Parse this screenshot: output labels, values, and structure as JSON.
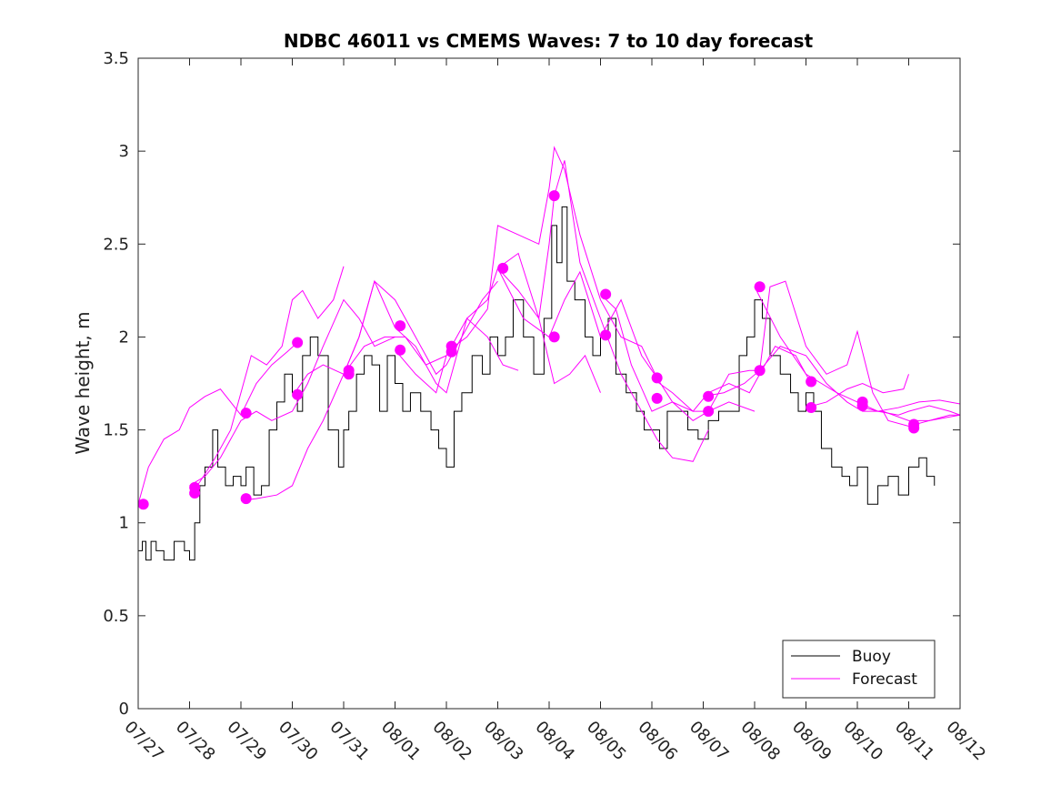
{
  "chart_data": {
    "type": "line",
    "title": "NDBC 46011 vs CMEMS Waves: 7 to 10 day forecast",
    "ylabel": "Wave height, m",
    "xlabel": "",
    "x_tick_labels": [
      "07/27",
      "07/28",
      "07/29",
      "07/30",
      "07/31",
      "08/01",
      "08/02",
      "08/03",
      "08/04",
      "08/05",
      "08/06",
      "08/07",
      "08/08",
      "08/09",
      "08/10",
      "08/11",
      "08/12"
    ],
    "y_tick_labels": [
      "0",
      "0.5",
      "1",
      "1.5",
      "2",
      "2.5",
      "3",
      "3.5"
    ],
    "y_ticks": [
      0,
      0.5,
      1,
      1.5,
      2,
      2.5,
      3,
      3.5
    ],
    "xlim": [
      0,
      16
    ],
    "ylim": [
      0,
      3.5
    ],
    "grid": false,
    "legend": {
      "position": "bottom-right",
      "entries": [
        "Buoy",
        "Forecast"
      ]
    },
    "colors": {
      "buoy": "#000000",
      "forecast": "#ff00ff"
    },
    "x_units": "days since 07/27",
    "series": [
      {
        "name": "Buoy",
        "x": [
          0,
          0.08,
          0.15,
          0.25,
          0.35,
          0.5,
          0.7,
          0.9,
          1.0,
          1.1,
          1.2,
          1.3,
          1.45,
          1.55,
          1.7,
          1.85,
          2.0,
          2.1,
          2.25,
          2.4,
          2.55,
          2.7,
          2.85,
          3.0,
          3.1,
          3.2,
          3.35,
          3.5,
          3.7,
          3.9,
          4.0,
          4.1,
          4.25,
          4.4,
          4.55,
          4.7,
          4.85,
          5.0,
          5.15,
          5.3,
          5.5,
          5.7,
          5.85,
          6.0,
          6.15,
          6.3,
          6.5,
          6.7,
          6.85,
          7.0,
          7.15,
          7.3,
          7.5,
          7.7,
          7.9,
          8.05,
          8.15,
          8.25,
          8.35,
          8.5,
          8.7,
          8.85,
          9.0,
          9.15,
          9.3,
          9.5,
          9.7,
          9.85,
          10.0,
          10.15,
          10.3,
          10.5,
          10.7,
          10.9,
          11.1,
          11.3,
          11.5,
          11.7,
          11.85,
          12.0,
          12.15,
          12.3,
          12.5,
          12.7,
          12.85,
          13.0,
          13.15,
          13.3,
          13.5,
          13.7,
          13.85,
          14.0,
          14.2,
          14.4,
          14.6,
          14.8,
          15.0,
          15.2,
          15.35,
          15.5
        ],
        "values": [
          0.85,
          0.9,
          0.8,
          0.9,
          0.85,
          0.8,
          0.9,
          0.85,
          0.8,
          1.0,
          1.2,
          1.3,
          1.5,
          1.3,
          1.2,
          1.25,
          1.2,
          1.3,
          1.15,
          1.2,
          1.5,
          1.65,
          1.8,
          1.7,
          1.6,
          1.9,
          2.0,
          1.9,
          1.5,
          1.3,
          1.5,
          1.6,
          1.8,
          1.9,
          1.85,
          1.6,
          1.9,
          1.75,
          1.6,
          1.7,
          1.6,
          1.5,
          1.4,
          1.3,
          1.6,
          1.7,
          1.9,
          1.8,
          2.0,
          1.9,
          2.0,
          2.2,
          2.0,
          1.8,
          2.1,
          2.6,
          2.4,
          2.7,
          2.3,
          2.2,
          2.0,
          1.9,
          2.0,
          2.1,
          1.8,
          1.7,
          1.6,
          1.5,
          1.5,
          1.4,
          1.6,
          1.6,
          1.5,
          1.45,
          1.55,
          1.6,
          1.6,
          1.9,
          2.0,
          2.2,
          2.1,
          1.9,
          1.8,
          1.7,
          1.6,
          1.7,
          1.6,
          1.4,
          1.3,
          1.25,
          1.2,
          1.3,
          1.1,
          1.2,
          1.25,
          1.15,
          1.3,
          1.35,
          1.25,
          1.2
        ]
      },
      {
        "name": "Forecast",
        "runs": [
          {
            "x": [
              0,
              0.2,
              0.5,
              0.8,
              1.0,
              1.3,
              1.6,
              2.0,
              2.3,
              2.6,
              2.9,
              3.1
            ],
            "values": [
              1.1,
              1.3,
              1.45,
              1.5,
              1.62,
              1.68,
              1.72,
              1.58,
              1.75,
              1.85,
              1.92,
              1.97
            ]
          },
          {
            "x": [
              1.0,
              1.2,
              1.5,
              1.8,
              2.0,
              2.2,
              2.5,
              2.8,
              3.0,
              3.2,
              3.5,
              3.8,
              4.0
            ],
            "values": [
              1.15,
              1.22,
              1.35,
              1.5,
              1.7,
              1.9,
              1.85,
              1.95,
              2.2,
              2.25,
              2.1,
              2.2,
              2.38
            ]
          },
          {
            "x": [
              1.0,
              1.3,
              1.6,
              2.0,
              2.3,
              2.6,
              3.0,
              3.3,
              3.6,
              4.0,
              4.3,
              4.6,
              5.0
            ],
            "values": [
              1.2,
              1.25,
              1.35,
              1.55,
              1.6,
              1.55,
              1.6,
              1.75,
              1.95,
              2.2,
              2.1,
              1.95,
              2.0
            ]
          },
          {
            "x": [
              2.0,
              2.3,
              2.7,
              3.0,
              3.3,
              3.6,
              4.0,
              4.4,
              4.8,
              5.2,
              5.6,
              6.0
            ],
            "values": [
              1.12,
              1.13,
              1.15,
              1.2,
              1.4,
              1.55,
              1.8,
              1.95,
              2.0,
              2.0,
              1.85,
              1.9
            ]
          },
          {
            "x": [
              3.0,
              3.3,
              3.6,
              4.0,
              4.3,
              4.6,
              5.0,
              5.4,
              5.8,
              6.0,
              6.3,
              6.7,
              7.0
            ],
            "values": [
              1.68,
              1.8,
              1.85,
              1.8,
              2.0,
              2.3,
              2.2,
              2.0,
              1.8,
              1.85,
              2.0,
              2.2,
              2.3
            ]
          },
          {
            "x": [
              4.0,
              4.3,
              4.6,
              5.0,
              5.4,
              5.8,
              6.0,
              6.4,
              6.8,
              7.1,
              7.4
            ],
            "values": [
              1.8,
              2.0,
              2.3,
              2.05,
              1.95,
              1.75,
              1.7,
              2.1,
              2.0,
              1.85,
              1.82
            ]
          },
          {
            "x": [
              5.0,
              5.4,
              5.8,
              6.0,
              6.4,
              6.8,
              7.0,
              7.4,
              7.8,
              8.1,
              8.4,
              8.7,
              9.0
            ],
            "values": [
              1.93,
              1.8,
              1.7,
              1.9,
              2.1,
              2.2,
              2.37,
              2.45,
              2.1,
              1.75,
              1.8,
              1.9,
              1.7
            ]
          },
          {
            "x": [
              6.0,
              6.4,
              6.8,
              7.0,
              7.4,
              7.8,
              8.0,
              8.1,
              8.3,
              8.6,
              9.0,
              9.4,
              9.8,
              10.1
            ],
            "values": [
              1.92,
              2.0,
              2.15,
              2.6,
              2.55,
              2.5,
              2.8,
              3.02,
              2.9,
              2.55,
              2.2,
              2.0,
              1.95,
              1.78
            ]
          },
          {
            "x": [
              7.0,
              7.4,
              7.8,
              8.0,
              8.1,
              8.3,
              8.6,
              9.0,
              9.4,
              9.8,
              10.1,
              10.4,
              10.8,
              11.1
            ],
            "values": [
              2.37,
              2.25,
              2.1,
              2.5,
              2.76,
              2.95,
              2.4,
              2.1,
              1.8,
              1.6,
              1.45,
              1.35,
              1.33,
              1.5
            ]
          },
          {
            "x": [
              7.0,
              7.5,
              8.0,
              8.3,
              8.6,
              9.0,
              9.4,
              9.8,
              10.1,
              10.4,
              10.8,
              11.1,
              11.5,
              12.0
            ],
            "values": [
              2.37,
              2.1,
              2.0,
              2.2,
              2.35,
              2.0,
              2.2,
              1.9,
              1.78,
              1.65,
              1.55,
              1.6,
              1.65,
              1.6
            ]
          },
          {
            "x": [
              9.0,
              9.3,
              9.6,
              10.0,
              10.4,
              10.8,
              11.1,
              11.5,
              11.9,
              12.1,
              12.4,
              12.8,
              13.1
            ],
            "values": [
              2.23,
              2.15,
              1.85,
              1.6,
              1.65,
              1.6,
              1.7,
              1.75,
              1.7,
              1.8,
              1.95,
              1.9,
              1.75
            ]
          },
          {
            "x": [
              10.0,
              10.4,
              10.8,
              11.1,
              11.5,
              11.9,
              12.1,
              12.3,
              12.6,
              13.0,
              13.4,
              13.8,
              14.0,
              14.3,
              14.6,
              15.0,
              15.4,
              15.8,
              16.0
            ],
            "values": [
              1.78,
              1.7,
              1.6,
              1.6,
              1.8,
              1.82,
              1.82,
              2.27,
              2.3,
              1.95,
              1.8,
              1.85,
              2.03,
              1.7,
              1.55,
              1.52,
              1.55,
              1.58,
              1.58
            ]
          },
          {
            "x": [
              11.0,
              11.4,
              11.8,
              12.1,
              12.5,
              13.0,
              13.4,
              13.8,
              14.1,
              14.5,
              15.0,
              15.4,
              15.8,
              16.0
            ],
            "values": [
              1.68,
              1.7,
              1.75,
              1.82,
              1.95,
              1.9,
              1.75,
              1.65,
              1.6,
              1.6,
              1.55,
              1.55,
              1.57,
              1.58
            ]
          },
          {
            "x": [
              12.0,
              12.5,
              13.0,
              13.3,
              13.6,
              14.0,
              14.4,
              14.8,
              15.2,
              15.6,
              16.0
            ],
            "values": [
              2.27,
              2.0,
              1.8,
              1.75,
              1.7,
              1.65,
              1.6,
              1.62,
              1.65,
              1.66,
              1.64
            ]
          },
          {
            "x": [
              13.0,
              13.4,
              13.8,
              14.1,
              14.5,
              14.9,
              15.0
            ],
            "values": [
              1.62,
              1.65,
              1.72,
              1.75,
              1.7,
              1.72,
              1.8
            ]
          },
          {
            "x": [
              14.0,
              14.4,
              14.8,
              15.0,
              15.4,
              15.8,
              16.0
            ],
            "values": [
              1.63,
              1.6,
              1.58,
              1.6,
              1.63,
              1.6,
              1.58
            ]
          }
        ],
        "markers": {
          "x": [
            0.1,
            1.1,
            1.1,
            2.1,
            2.1,
            3.1,
            3.1,
            4.1,
            4.1,
            5.1,
            5.1,
            6.1,
            6.1,
            7.1,
            8.1,
            8.1,
            9.1,
            9.1,
            10.1,
            10.1,
            11.1,
            11.1,
            12.1,
            12.1,
            13.1,
            13.1,
            14.1,
            14.1,
            15.1,
            15.1
          ],
          "values": [
            1.1,
            1.16,
            1.19,
            1.13,
            1.59,
            1.69,
            1.97,
            1.8,
            1.82,
            1.93,
            2.06,
            1.92,
            1.95,
            2.37,
            2.0,
            2.76,
            2.01,
            2.23,
            1.67,
            1.78,
            1.6,
            1.68,
            2.27,
            1.82,
            1.62,
            1.76,
            1.63,
            1.65,
            1.51,
            1.53
          ]
        }
      }
    ]
  }
}
